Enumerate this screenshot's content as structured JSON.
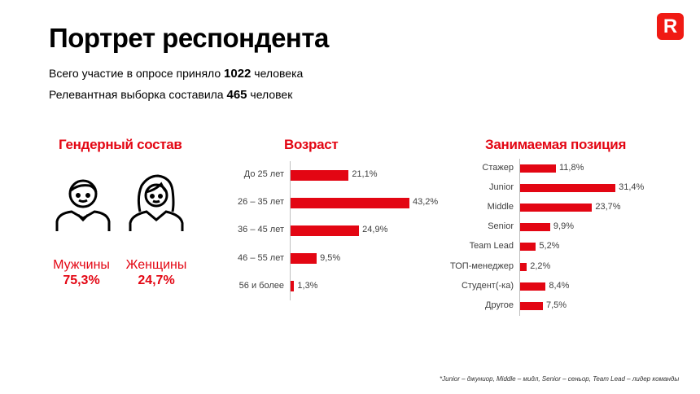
{
  "header": {
    "title": "Портрет респондента",
    "logo": "R",
    "line1_pre": "Всего участие в опросе  приняло ",
    "line1_num": "1022",
    "line1_post": " человека",
    "line2_pre": "Релевантная  выборка  составила ",
    "line2_num": "465",
    "line2_post": " человек"
  },
  "gender": {
    "title": "Гендерный состав",
    "items": [
      {
        "label": "Мужчины",
        "value": "75,3%",
        "icon": "man-icon"
      },
      {
        "label": "Женщины",
        "value": "24,7%",
        "icon": "woman-icon"
      }
    ]
  },
  "colors": {
    "accent": "#e30613"
  },
  "chart_data": [
    {
      "type": "bar",
      "orientation": "horizontal",
      "title": "Возраст",
      "categories": [
        "До 25 лет",
        "26 – 35 лет",
        "36 – 45 лет",
        "46 – 55 лет",
        "56 и более"
      ],
      "values": [
        21.1,
        43.2,
        24.9,
        9.5,
        1.3
      ],
      "labels": [
        "21,1%",
        "43,2%",
        "24,9%",
        "9,5%",
        "1,3%"
      ],
      "grid": false
    },
    {
      "type": "bar",
      "orientation": "horizontal",
      "title": "Занимаемая позиция",
      "categories": [
        "Стажер",
        "Junior",
        "Middle",
        "Senior",
        "Team Lead",
        "ТОП-менеджер",
        "Студент(-ка)",
        "Другое"
      ],
      "values": [
        11.8,
        31.4,
        23.7,
        9.9,
        5.2,
        2.2,
        8.4,
        7.5
      ],
      "labels": [
        "11,8%",
        "31,4%",
        "23,7%",
        "9,9%",
        "5,2%",
        "2,2%",
        "8,4%",
        "7,5%"
      ],
      "grid": false
    }
  ],
  "footnote": "*Junior – джуниор, Middle – мидл, Senior –  сеньор,  Team Lead – лидер команды"
}
